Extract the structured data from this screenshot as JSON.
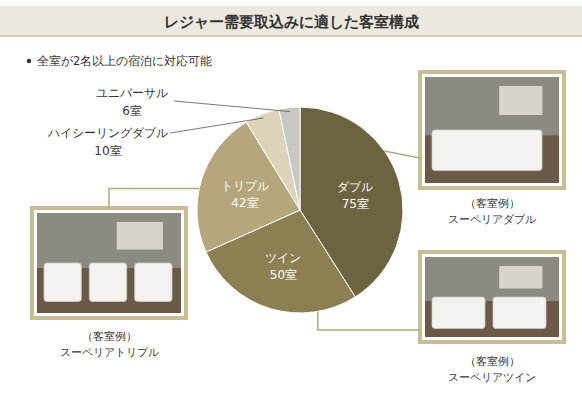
{
  "chart_data": {
    "type": "pie",
    "title": "レジャー需要取込みに適した客室構成",
    "subtitle": "全室が2名以上の宿泊に対応可能",
    "categories": [
      "ダブル",
      "ツイン",
      "トリプル",
      "ハイシーリングダブル",
      "ユニバーサル"
    ],
    "values": [
      75,
      50,
      42,
      10,
      6
    ],
    "value_labels": [
      "75室",
      "50室",
      "42室",
      "10室",
      "6室"
    ],
    "colors": [
      "#6e6340",
      "#8c7f52",
      "#b5a77b",
      "#ddd3b8",
      "#c9c7c2"
    ],
    "data_labels": true,
    "annotations": [
      {
        "label": "（客室例）",
        "text": "スーペリアダブル"
      },
      {
        "label": "（客室例）",
        "text": "スーペリアツイン"
      },
      {
        "label": "（客室例）",
        "text": "スーペリアトリプル"
      }
    ]
  }
}
